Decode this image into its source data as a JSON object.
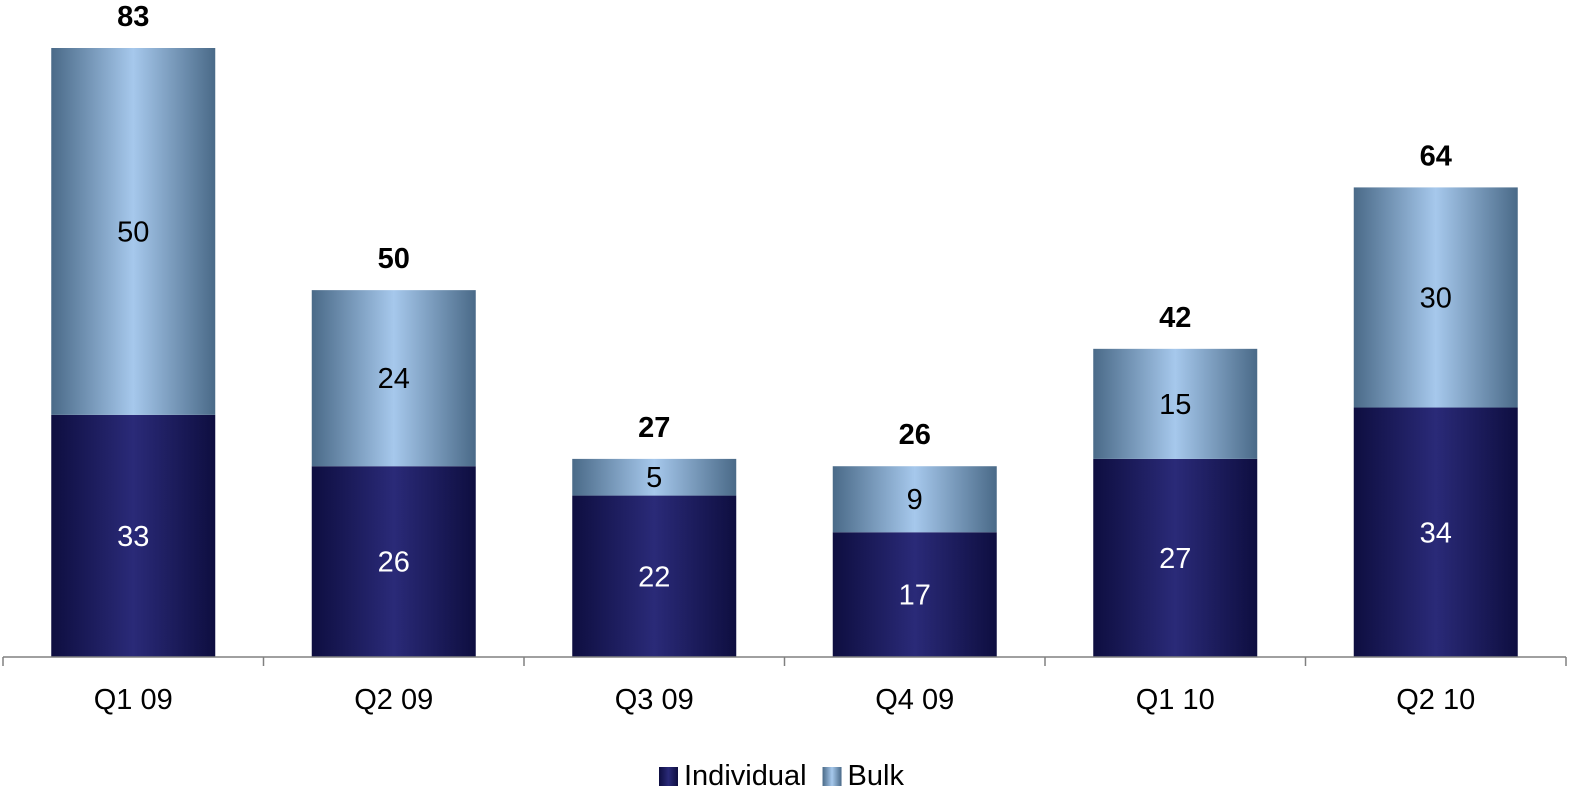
{
  "chart_data": {
    "type": "bar",
    "stacked": true,
    "categories": [
      "Q1 09",
      "Q2 09",
      "Q3 09",
      "Q4 09",
      "Q1 10",
      "Q2 10"
    ],
    "series": [
      {
        "name": "Individual",
        "values": [
          33,
          26,
          22,
          17,
          27,
          34
        ],
        "color": "#1f1f66"
      },
      {
        "name": "Bulk",
        "values": [
          50,
          24,
          5,
          9,
          15,
          30
        ],
        "color": "#8fb4dc"
      }
    ],
    "totals": [
      83,
      50,
      27,
      26,
      42,
      64
    ],
    "ylim": [
      0,
      83
    ],
    "grid": false,
    "legend_position": "bottom-center",
    "colors": {
      "individual_dark": "#0e0e40",
      "individual_light": "#2a2a78",
      "bulk_dark": "#4a6a88",
      "bulk_light": "#a6c8ec",
      "axis": "#808080"
    }
  }
}
